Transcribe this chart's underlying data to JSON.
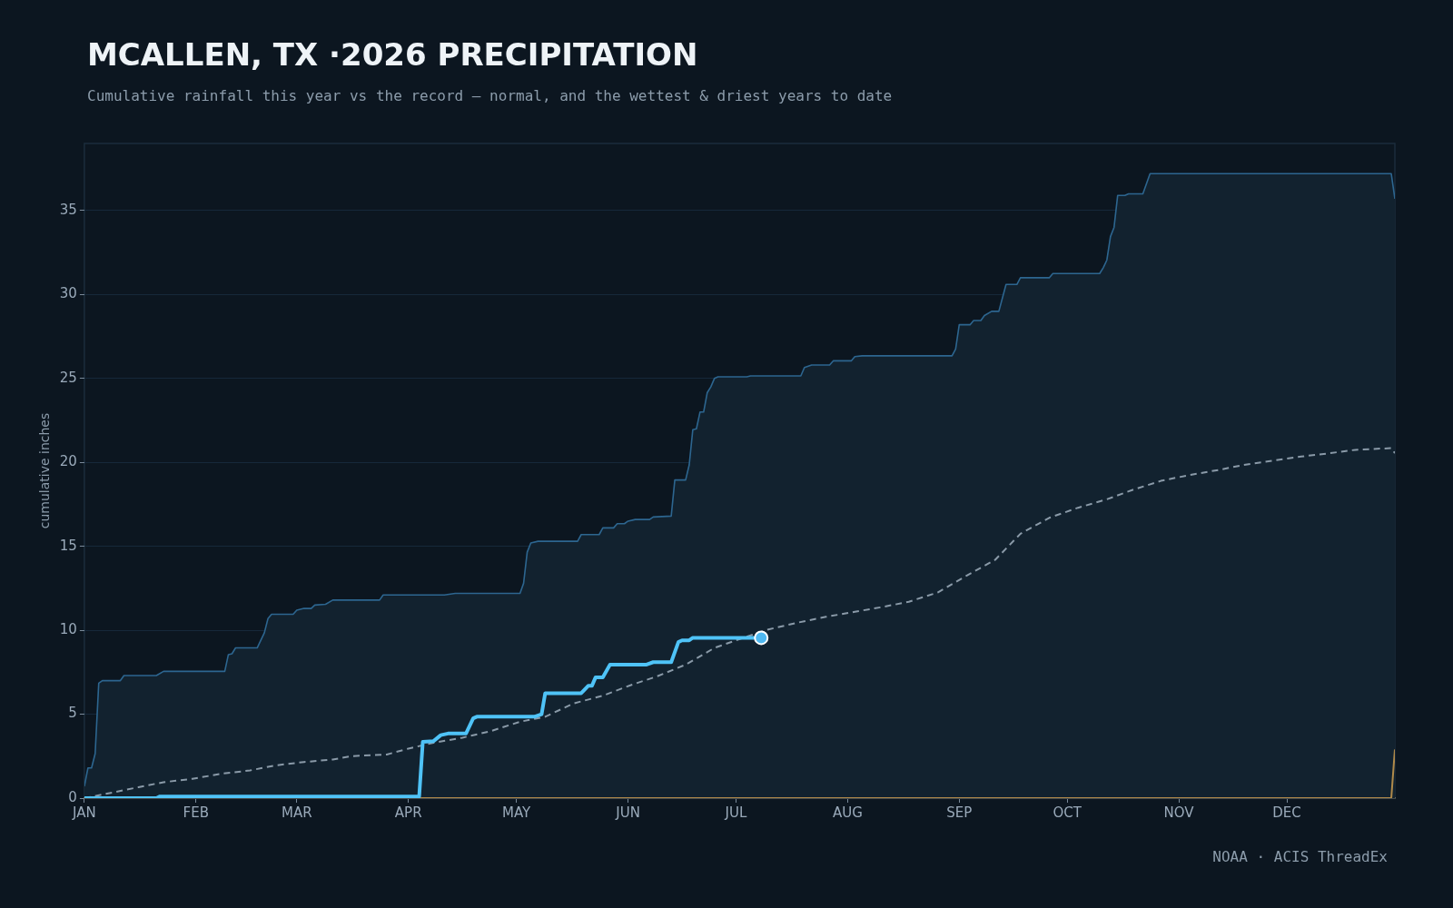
{
  "chart_data": {
    "type": "line",
    "title": "MCALLEN, TX ·2026 PRECIPITATION",
    "subtitle": "Cumulative rainfall this year vs the record — normal, and the wettest & driest years to date",
    "ylabel": "cumulative inches",
    "annotations": [
      "NOAA · ACIS ThreadEx"
    ],
    "xlim": [
      "--01-01",
      "--12-31"
    ],
    "xticks": [
      {
        "value": "--01-01",
        "label": "JAN"
      },
      {
        "value": "--02-01",
        "label": "FEB"
      },
      {
        "value": "--03-01",
        "label": "MAR"
      },
      {
        "value": "--04-01",
        "label": "APR"
      },
      {
        "value": "--05-01",
        "label": "MAY"
      },
      {
        "value": "--06-01",
        "label": "JUN"
      },
      {
        "value": "--07-01",
        "label": "JUL"
      },
      {
        "value": "--08-01",
        "label": "AUG"
      },
      {
        "value": "--09-01",
        "label": "SEP"
      },
      {
        "value": "--10-01",
        "label": "OCT"
      },
      {
        "value": "--11-01",
        "label": "NOV"
      },
      {
        "value": "--12-01",
        "label": "DEC"
      }
    ],
    "ylim": [
      0,
      39
    ],
    "yticks": [
      0,
      5,
      10,
      15,
      20,
      25,
      30,
      35
    ],
    "grid": "y",
    "legend": false,
    "marker": "none",
    "series": [
      {
        "type": "area",
        "color": "#2d6690",
        "x": [
          "--01-01",
          "--01-02",
          "--01-03",
          "--01-04",
          "--01-05",
          "--01-06",
          "--01-11",
          "--01-12",
          "--01-21",
          "--01-23",
          "--02-09",
          "--02-10",
          "--02-11",
          "--02-12",
          "--02-18",
          "--02-20",
          "--02-21",
          "--02-22",
          "--02-28",
          "--03-01",
          "--03-03",
          "--03-05",
          "--03-06",
          "--03-09",
          "--03-11",
          "--03-24",
          "--03-25",
          "--04-11",
          "--04-14",
          "--05-02",
          "--05-03",
          "--05-04",
          "--05-05",
          "--05-07",
          "--05-18",
          "--05-19",
          "--05-24",
          "--05-25",
          "--05-28",
          "--05-29",
          "--05-31",
          "--06-01",
          "--06-03",
          "--06-07",
          "--06-08",
          "--06-13",
          "--06-14",
          "--06-17",
          "--06-18",
          "--06-19",
          "--06-20",
          "--06-21",
          "--06-22",
          "--06-23",
          "--06-24",
          "--06-25",
          "--06-26",
          "--07-04",
          "--07-05",
          "--07-19",
          "--07-20",
          "--07-22",
          "--07-27",
          "--07-28",
          "--08-02",
          "--08-03",
          "--08-05",
          "--08-30",
          "--08-31",
          "--09-01",
          "--09-04",
          "--09-05",
          "--09-07",
          "--09-08",
          "--09-10",
          "--09-12",
          "--09-14",
          "--09-17",
          "--09-18",
          "--09-26",
          "--09-27",
          "--10-10",
          "--10-11",
          "--10-12",
          "--10-13",
          "--10-14",
          "--10-15",
          "--10-17",
          "--10-18",
          "--10-22",
          "--10-24",
          "--12-30",
          "--12-31"
        ],
        "values": [
          0.7,
          1.8,
          1.8,
          2.65,
          6.85,
          7,
          7,
          7.3,
          7.3,
          7.55,
          7.55,
          8.55,
          8.6,
          8.95,
          8.95,
          9.85,
          10.7,
          10.95,
          10.95,
          11.2,
          11.3,
          11.3,
          11.5,
          11.55,
          11.8,
          11.8,
          12.1,
          12.1,
          12.2,
          12.2,
          12.8,
          14.65,
          15.2,
          15.3,
          15.3,
          15.7,
          15.7,
          16.1,
          16.1,
          16.35,
          16.35,
          16.5,
          16.6,
          16.6,
          16.75,
          16.8,
          18.95,
          18.95,
          19.85,
          21.95,
          22,
          23,
          23,
          24.15,
          24.5,
          25,
          25.1,
          25.1,
          25.15,
          25.15,
          25.65,
          25.8,
          25.8,
          26.05,
          26.05,
          26.3,
          26.35,
          26.35,
          26.75,
          28.2,
          28.2,
          28.45,
          28.45,
          28.75,
          29,
          29,
          30.6,
          30.6,
          31,
          31,
          31.25,
          31.25,
          31.6,
          32.05,
          33.45,
          34,
          35.9,
          35.9,
          36,
          36,
          37.2,
          37.2,
          35.7
        ]
      },
      {
        "type": "line",
        "color": "#8a9aa8",
        "line_style": "dashed",
        "x": [
          "--01-01",
          "--01-08",
          "--01-16",
          "--01-23",
          "--01-31",
          "--02-08",
          "--02-16",
          "--02-23",
          "--03-03",
          "--03-11",
          "--03-16",
          "--03-26",
          "--04-01",
          "--04-08",
          "--04-16",
          "--04-24",
          "--05-02",
          "--05-09",
          "--05-17",
          "--05-25",
          "--06-02",
          "--06-09",
          "--06-17",
          "--06-25",
          "--07-03",
          "--07-10",
          "--07-18",
          "--07-26",
          "--08-03",
          "--08-11",
          "--08-18",
          "--08-26",
          "--09-03",
          "--09-11",
          "--09-18",
          "--09-26",
          "--10-04",
          "--10-12",
          "--10-19",
          "--10-27",
          "--11-04",
          "--11-12",
          "--11-19",
          "--11-27",
          "--12-05",
          "--12-13",
          "--12-20",
          "--12-30",
          "--12-31"
        ],
        "values": [
          0,
          0.3,
          0.65,
          0.95,
          1.15,
          1.45,
          1.65,
          1.95,
          2.15,
          2.3,
          2.5,
          2.6,
          2.95,
          3.3,
          3.6,
          4,
          4.55,
          4.85,
          5.65,
          6.1,
          6.75,
          7.25,
          7.95,
          8.95,
          9.55,
          10.05,
          10.45,
          10.8,
          11.1,
          11.4,
          11.7,
          12.25,
          13.25,
          14.2,
          15.75,
          16.7,
          17.3,
          17.8,
          18.35,
          18.9,
          19.25,
          19.55,
          19.85,
          20.1,
          20.35,
          20.55,
          20.75,
          20.85,
          20.55
        ]
      },
      {
        "type": "line",
        "color": "#b08a4a",
        "x": [
          "--01-01",
          "--12-30",
          "--12-31"
        ],
        "values": [
          0,
          0,
          2.9
        ]
      },
      {
        "type": "line",
        "color": "#4fc3f7",
        "x": [
          "--01-01",
          "--01-21",
          "--01-22",
          "--04-04",
          "--04-05",
          "--04-08",
          "--04-10",
          "--04-12",
          "--04-17",
          "--04-19",
          "--04-20",
          "--05-06",
          "--05-08",
          "--05-09",
          "--05-19",
          "--05-21",
          "--05-22",
          "--05-23",
          "--05-25",
          "--05-27",
          "--06-06",
          "--06-08",
          "--06-13",
          "--06-15",
          "--06-16",
          "--06-18",
          "--06-19",
          "--07-08"
        ],
        "values": [
          0,
          0,
          0.1,
          0.1,
          3.35,
          3.4,
          3.75,
          3.85,
          3.85,
          4.75,
          4.85,
          4.85,
          5,
          6.25,
          6.25,
          6.7,
          6.7,
          7.2,
          7.2,
          7.95,
          7.95,
          8.1,
          8.1,
          9.3,
          9.4,
          9.4,
          9.55,
          9.55
        ]
      },
      {
        "type": "scatter",
        "color": "#4fb8f0",
        "marker": "circle",
        "x": [
          "--07-08"
        ],
        "values": [
          9.55
        ]
      }
    ]
  }
}
